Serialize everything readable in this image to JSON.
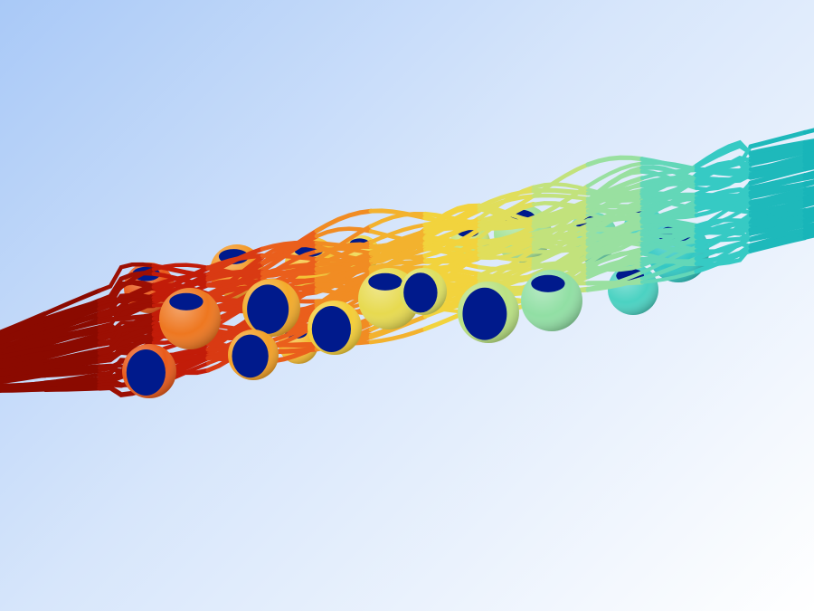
{
  "scene": {
    "kind": "cfd-streamlines-over-packed-spheres",
    "background": {
      "from": "#a9c9f7",
      "to": "#ffffff"
    },
    "colormap": [
      "#8b0a00",
      "#c81e0a",
      "#e8531a",
      "#f39a25",
      "#f4d23a",
      "#d7e36a",
      "#96e0a2",
      "#3fd0c7",
      "#18b5b9"
    ],
    "sphere_face_color": "#001a8c"
  }
}
